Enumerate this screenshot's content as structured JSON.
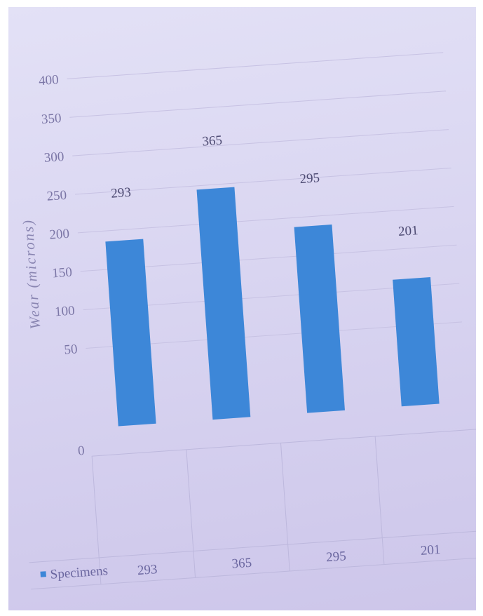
{
  "chart_data": {
    "type": "bar",
    "ylabel": "Wear (microns)",
    "y_ticks": [
      "400",
      "350",
      "300",
      "250",
      "200",
      "150",
      "100",
      "50",
      "0"
    ],
    "ylim": [
      0,
      400
    ],
    "grid": true,
    "categories": [
      "",
      "",
      "",
      ""
    ],
    "series": [
      {
        "name": "Specimens",
        "values": [
          293,
          365,
          295,
          201
        ]
      }
    ],
    "data_labels": [
      "293",
      "365",
      "295",
      "201"
    ],
    "data_table": {
      "legend_label": "Specimens",
      "values": [
        "293",
        "365",
        "295",
        "201"
      ]
    },
    "bar_color": "#3d87d8"
  }
}
